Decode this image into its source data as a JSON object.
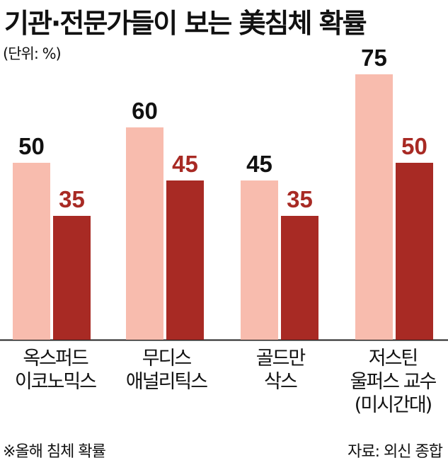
{
  "chart_data": {
    "type": "bar",
    "title": "기관·전문가들이 보는 美침체 확률",
    "unit_note": "(단위: %)",
    "categories": [
      [
        "옥스퍼드",
        "이코노믹스"
      ],
      [
        "무디스",
        "애널리틱스"
      ],
      [
        "골드만",
        "삭스"
      ],
      [
        "저스틴",
        "울퍼스 교수",
        "(미시간대)"
      ]
    ],
    "series": [
      {
        "values": [
          50,
          60,
          45,
          75
        ],
        "color": "#f8bcae",
        "label_color": "#111111"
      },
      {
        "values": [
          35,
          45,
          35,
          50
        ],
        "color": "#a82a24",
        "label_color": "#a82a24"
      }
    ],
    "ylim": [
      0,
      100
    ],
    "grid": false,
    "legend": "none",
    "footnote": "※올해 침체 확률",
    "source": "자료: 외신 종합"
  }
}
